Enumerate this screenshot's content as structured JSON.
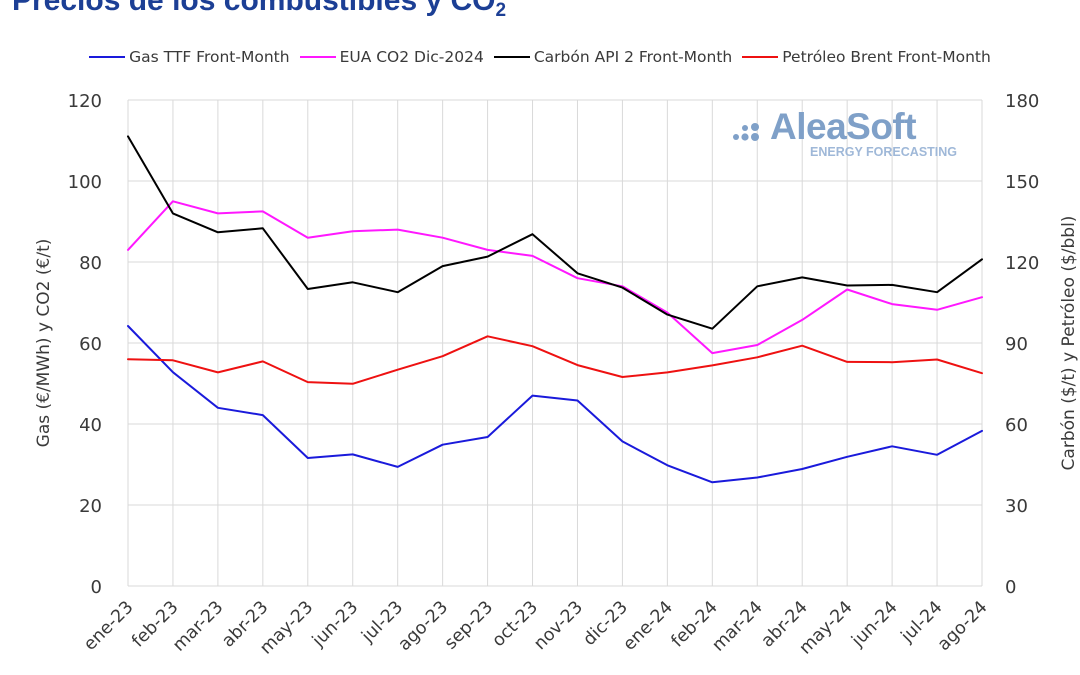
{
  "chart_data": {
    "type": "line",
    "title": "Precios de los combustibles y CO",
    "title_subscript": "2",
    "left_axis_label": "Gas (€/MWh) y CO2 (€/t)",
    "right_axis_label": "Carbón ($/t) y Petróleo ($/bbl)",
    "categories": [
      "ene-23",
      "feb-23",
      "mar-23",
      "abr-23",
      "may-23",
      "jun-23",
      "jul-23",
      "ago-23",
      "sep-23",
      "oct-23",
      "nov-23",
      "dic-23",
      "ene-24",
      "feb-24",
      "mar-24",
      "abr-24",
      "may-24",
      "jun-24",
      "jul-24",
      "ago-24"
    ],
    "left_ylim": [
      0,
      120
    ],
    "left_yticks": [
      "0",
      "20",
      "40",
      "60",
      "80",
      "100",
      "120"
    ],
    "right_ylim": [
      0,
      180
    ],
    "right_yticks": [
      "0",
      "30",
      "60",
      "90",
      "120",
      "150",
      "180"
    ],
    "grid": true,
    "legend_position": "top",
    "series": [
      {
        "name": "Gas TTF Front-Month",
        "color": "#1a1adb",
        "axis": "left",
        "values": [
          64.2,
          52.8,
          44.0,
          42.2,
          31.6,
          32.5,
          29.4,
          34.9,
          36.8,
          47.0,
          45.8,
          35.7,
          29.8,
          25.6,
          26.8,
          28.9,
          31.9,
          34.5,
          32.4,
          38.3
        ]
      },
      {
        "name": "EUA CO2 Dic-2024",
        "color": "#ff18ff",
        "axis": "left",
        "values": [
          83.0,
          95.0,
          92.0,
          92.5,
          86.0,
          87.6,
          88.0,
          86.0,
          83.0,
          81.5,
          76.0,
          74.0,
          67.5,
          57.5,
          59.5,
          65.7,
          73.2,
          69.6,
          68.2,
          71.3
        ]
      },
      {
        "name": "Carbón API 2 Front-Month",
        "color": "#000000",
        "axis": "right",
        "values": [
          166.5,
          138.0,
          131.0,
          132.5,
          110.0,
          112.5,
          108.8,
          118.5,
          122.0,
          130.3,
          115.8,
          110.5,
          100.5,
          95.3,
          111.0,
          114.3,
          111.3,
          111.5,
          108.8,
          121.0
        ]
      },
      {
        "name": "Petróleo Brent Front-Month",
        "color": "#ee1111",
        "axis": "right",
        "values": [
          84.0,
          83.6,
          79.1,
          83.2,
          75.5,
          74.9,
          80.1,
          85.1,
          92.5,
          88.8,
          81.8,
          77.4,
          79.1,
          81.7,
          84.7,
          89.0,
          83.0,
          82.9,
          83.9,
          78.8
        ]
      }
    ]
  },
  "logo": {
    "name": "AleaSoft",
    "tagline": "ENERGY FORECASTING",
    "color": "#7fa0c8"
  }
}
